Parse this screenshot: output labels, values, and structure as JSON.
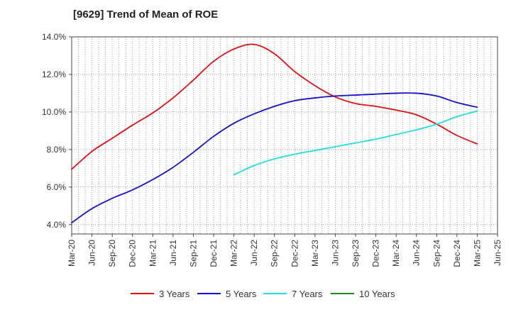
{
  "chart_data": {
    "type": "line",
    "title": "[9629]  Trend of Mean of ROE",
    "xlabel": "",
    "ylabel": "",
    "x": [
      "Mar-20",
      "Jun-20",
      "Sep-20",
      "Dec-20",
      "Mar-21",
      "Jun-21",
      "Sep-21",
      "Dec-21",
      "Mar-22",
      "Jun-22",
      "Sep-22",
      "Dec-22",
      "Mar-23",
      "Jun-23",
      "Sep-23",
      "Dec-23",
      "Mar-24",
      "Jun-24",
      "Sep-24",
      "Dec-24",
      "Mar-25",
      "Jun-25"
    ],
    "ylim": [
      3.5,
      14.0
    ],
    "yticks": [
      4.0,
      6.0,
      8.0,
      10.0,
      12.0,
      14.0
    ],
    "ytick_labels": [
      "4.0%",
      "6.0%",
      "8.0%",
      "10.0%",
      "12.0%",
      "14.0%"
    ],
    "grid": true,
    "legend_position": "bottom",
    "series": [
      {
        "name": "3 Years",
        "color": "#dd1111",
        "values": [
          6.95,
          7.9,
          8.6,
          9.3,
          9.95,
          10.75,
          11.7,
          12.7,
          13.35,
          13.6,
          13.1,
          12.15,
          11.4,
          10.8,
          10.45,
          10.3,
          10.1,
          9.85,
          9.35,
          8.75,
          8.3,
          null
        ]
      },
      {
        "name": "5 Years",
        "color": "#1111cc",
        "values": [
          4.1,
          4.85,
          5.4,
          5.85,
          6.4,
          7.05,
          7.85,
          8.7,
          9.4,
          9.9,
          10.3,
          10.6,
          10.75,
          10.85,
          10.9,
          10.95,
          11.0,
          11.0,
          10.85,
          10.5,
          10.25,
          null
        ]
      },
      {
        "name": "7 Years",
        "color": "#22dddd",
        "values": [
          null,
          null,
          null,
          null,
          null,
          null,
          null,
          null,
          6.65,
          7.15,
          7.5,
          7.75,
          7.95,
          8.15,
          8.35,
          8.55,
          8.8,
          9.05,
          9.35,
          9.75,
          10.05,
          null
        ]
      },
      {
        "name": "10 Years",
        "color": "#228822",
        "values": [
          null,
          null,
          null,
          null,
          null,
          null,
          null,
          null,
          null,
          null,
          null,
          null,
          null,
          null,
          null,
          null,
          null,
          null,
          null,
          null,
          null,
          null
        ]
      }
    ]
  }
}
